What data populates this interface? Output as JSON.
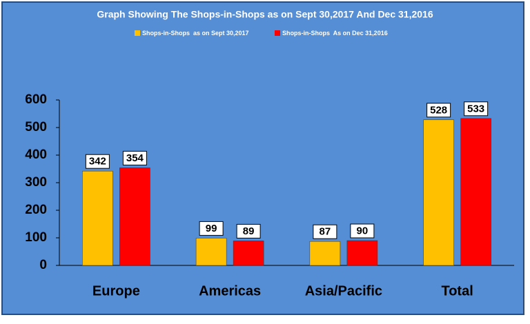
{
  "chart_data": {
    "type": "bar",
    "title": "Graph Showing The Shops-in-Shops as on Sept 30,2017 And Dec 31,2016",
    "categories": [
      "Europe",
      "Americas",
      "Asia/Pacific",
      "Total"
    ],
    "series": [
      {
        "name": "Shops-in-Shops  as on Sept 30,2017",
        "color": "#ffc000",
        "values": [
          342,
          99,
          87,
          528
        ]
      },
      {
        "name": "Shops-in-Shops  As on Dec 31,2016",
        "color": "#ff0000",
        "values": [
          354,
          89,
          90,
          533
        ]
      }
    ],
    "ylim": [
      0,
      600
    ],
    "yticks": [
      0,
      100,
      200,
      300,
      400,
      500,
      600
    ],
    "grid": false,
    "legend": "top"
  }
}
